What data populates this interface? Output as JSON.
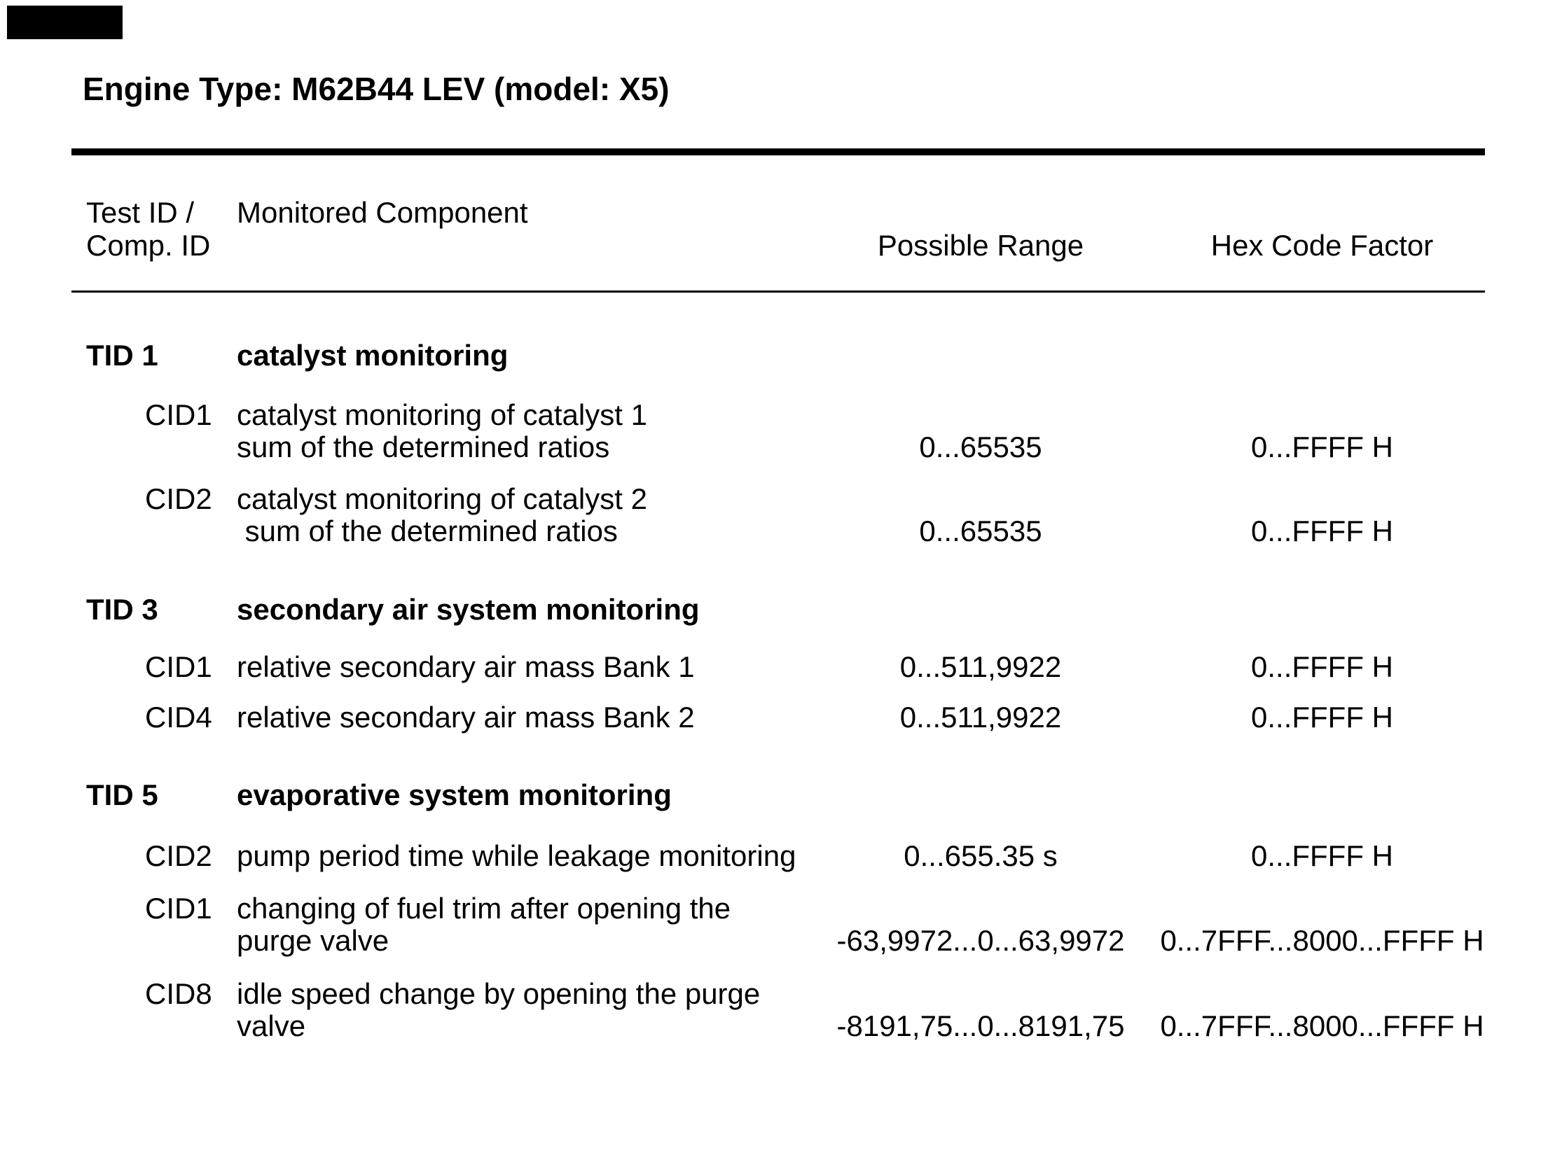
{
  "page": {
    "title": "Engine Type: M62B44 LEV (model: X5)"
  },
  "colors": {
    "text": "#000000",
    "background": "#ffffff",
    "rule": "#000000",
    "corner_mark": "#000000"
  },
  "table": {
    "headers": {
      "id_col": "Test ID /\nComp. ID",
      "component_col": "Monitored Component",
      "range_col": "Possible Range",
      "hex_col": "Hex Code Factor"
    },
    "sections": [
      {
        "tid": "TID 1",
        "name": "catalyst monitoring",
        "rows": [
          {
            "cid": "CID1",
            "component": "catalyst monitoring of catalyst 1\nsum of the determined ratios",
            "range": "0...65535",
            "hex": "0...FFFF H"
          },
          {
            "cid": "CID2",
            "component": "catalyst monitoring of catalyst 2\n sum of the determined ratios",
            "range": "0...65535",
            "hex": "0...FFFF H"
          }
        ]
      },
      {
        "tid": "TID 3",
        "name": "secondary air system monitoring",
        "rows": [
          {
            "cid": "CID1",
            "component": "relative secondary air mass Bank 1",
            "range": "0...511,9922",
            "hex": "0...FFFF H"
          },
          {
            "cid": "CID4",
            "component": "relative secondary air mass Bank 2",
            "range": "0...511,9922",
            "hex": "0...FFFF H"
          }
        ]
      },
      {
        "tid": "TID 5",
        "name": "evaporative system monitoring",
        "rows": [
          {
            "cid": "CID2",
            "component": "pump period time while leakage monitoring",
            "range": "0...655.35 s",
            "hex": "0...FFFF H"
          },
          {
            "cid": "CID1",
            "component": "changing of fuel trim after opening the\npurge valve",
            "range": "-63,9972...0...63,9972",
            "hex": "0...7FFF...8000...FFFF H"
          },
          {
            "cid": "CID8",
            "component": "idle speed change by opening the purge\nvalve",
            "range": "-8191,75...0...8191,75",
            "hex": "0...7FFF...8000...FFFF H"
          }
        ]
      }
    ]
  }
}
